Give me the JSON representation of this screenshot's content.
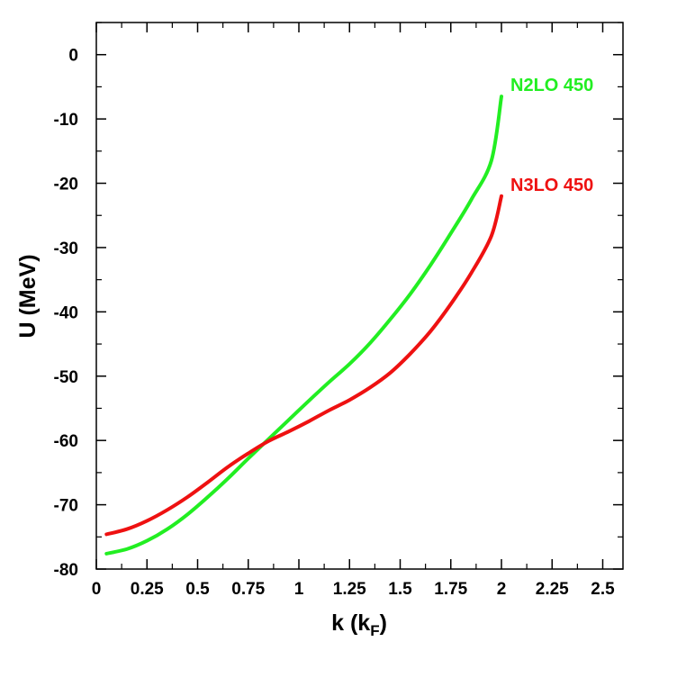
{
  "chart_data": {
    "type": "line",
    "title": "",
    "xlabel": "k (k",
    "xlabel_sub": "F",
    "xlabel_close": ")",
    "ylabel": "U (MeV)",
    "xlim": [
      0,
      2.6
    ],
    "ylim": [
      -80,
      5
    ],
    "x_ticks": [
      "0",
      "0.25",
      "0.5",
      "0.75",
      "1",
      "1.25",
      "1.5",
      "1.75",
      "2",
      "2.25",
      "2.5"
    ],
    "x_tick_values": [
      0,
      0.25,
      0.5,
      0.75,
      1,
      1.25,
      1.5,
      1.75,
      2,
      2.25,
      2.5
    ],
    "y_ticks": [
      "0",
      "-10",
      "-20",
      "-30",
      "-40",
      "-50",
      "-60",
      "-70",
      "-80"
    ],
    "y_tick_values": [
      0,
      -10,
      -20,
      -30,
      -40,
      -50,
      -60,
      -70,
      -80
    ],
    "grid": false,
    "series": [
      {
        "name": "N2LO 450",
        "color": "#22ee22",
        "x": [
          0.05,
          0.15,
          0.25,
          0.35,
          0.45,
          0.55,
          0.65,
          0.75,
          0.85,
          0.95,
          1.05,
          1.15,
          1.25,
          1.35,
          1.45,
          1.55,
          1.65,
          1.75,
          1.85,
          1.95,
          2.0
        ],
        "y": [
          -77.6,
          -76.9,
          -75.6,
          -73.8,
          -71.5,
          -68.8,
          -65.9,
          -62.8,
          -59.8,
          -56.8,
          -53.8,
          -50.9,
          -48.1,
          -44.9,
          -41.2,
          -37.2,
          -32.7,
          -27.8,
          -22.6,
          -16.5,
          -6.5
        ]
      },
      {
        "name": "N3LO 450",
        "color": "#ee1111",
        "x": [
          0.05,
          0.15,
          0.25,
          0.35,
          0.45,
          0.55,
          0.65,
          0.75,
          0.85,
          0.95,
          1.05,
          1.15,
          1.25,
          1.35,
          1.45,
          1.55,
          1.65,
          1.75,
          1.85,
          1.95,
          2.0
        ],
        "y": [
          -74.6,
          -73.8,
          -72.5,
          -70.8,
          -68.8,
          -66.5,
          -64.1,
          -62.0,
          -60.1,
          -58.6,
          -57.0,
          -55.3,
          -53.7,
          -51.8,
          -49.5,
          -46.5,
          -43.0,
          -38.8,
          -34.0,
          -28.2,
          -22.0
        ]
      }
    ]
  }
}
